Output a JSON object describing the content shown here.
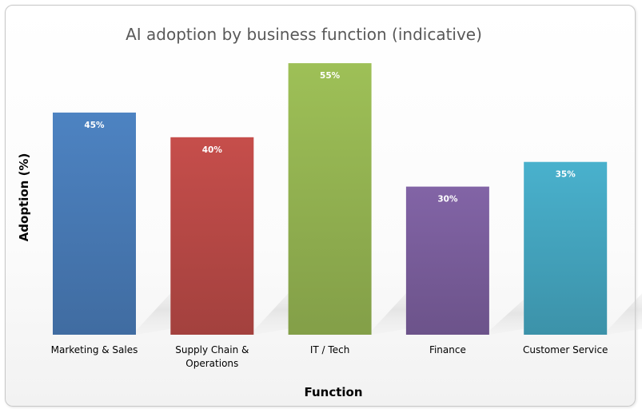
{
  "chart_data": {
    "type": "bar",
    "title": "AI adoption by business function (indicative)",
    "xlabel": "Function",
    "ylabel": "Adoption (%)",
    "ylim": [
      0,
      60
    ],
    "categories": [
      "Marketing & Sales",
      "Supply Chain & Operations",
      "IT / Tech",
      "Finance",
      "Customer Service"
    ],
    "category_lines": [
      [
        "Marketing & Sales"
      ],
      [
        "Supply Chain &",
        "Operations"
      ],
      [
        "IT / Tech"
      ],
      [
        "Finance"
      ],
      [
        "Customer Service"
      ]
    ],
    "values": [
      45,
      40,
      55,
      30,
      35
    ],
    "data_labels": [
      "45%",
      "40%",
      "55%",
      "30%",
      "35%"
    ],
    "colors": [
      "#4a7ebb",
      "#be4b48",
      "#98b954",
      "#7d60a0",
      "#46aac5"
    ],
    "grid": false,
    "legend": "none"
  }
}
